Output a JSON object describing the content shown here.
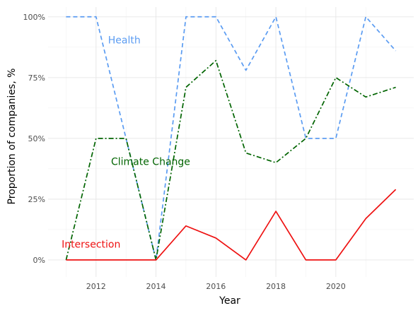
{
  "chart_data": {
    "type": "line",
    "title": "",
    "xlabel": "Year",
    "ylabel": "Proportion of companies, %",
    "x": [
      2011,
      2012,
      2013,
      2014,
      2015,
      2016,
      2017,
      2018,
      2019,
      2020,
      2021,
      2022
    ],
    "xlim": [
      2010.4,
      2022.6
    ],
    "ylim": [
      -0.07,
      1.04
    ],
    "x_ticks": [
      2012,
      2014,
      2016,
      2018,
      2020
    ],
    "x_tick_labels": [
      "2012",
      "2014",
      "2016",
      "2018",
      "2020"
    ],
    "y_ticks": [
      0,
      0.25,
      0.5,
      0.75,
      1.0
    ],
    "y_tick_labels": [
      "0%",
      "25%",
      "50%",
      "75%",
      "100%"
    ],
    "grid": true,
    "legend": "none",
    "series": [
      {
        "name": "Health",
        "color": "#5b9cf2",
        "dash": "dashed",
        "label_at": [
          2012.4,
          0.89
        ],
        "values": [
          1.0,
          1.0,
          0.5,
          0.0,
          1.0,
          1.0,
          0.78,
          1.0,
          0.5,
          0.5,
          1.0,
          0.86
        ]
      },
      {
        "name": "Climate Change",
        "color": "#006400",
        "dash": "dashdot",
        "label_at": [
          2012.5,
          0.39
        ],
        "values": [
          0.0,
          0.5,
          0.5,
          0.0,
          0.71,
          0.82,
          0.44,
          0.4,
          0.5,
          0.75,
          0.67,
          0.71
        ]
      },
      {
        "name": "Intersection",
        "color": "#ee1111",
        "dash": "solid",
        "label_at": [
          2010.85,
          0.05
        ],
        "values": [
          0.0,
          0.0,
          0.0,
          0.0,
          0.14,
          0.09,
          0.0,
          0.2,
          0.0,
          0.0,
          0.17,
          0.29
        ]
      }
    ]
  }
}
